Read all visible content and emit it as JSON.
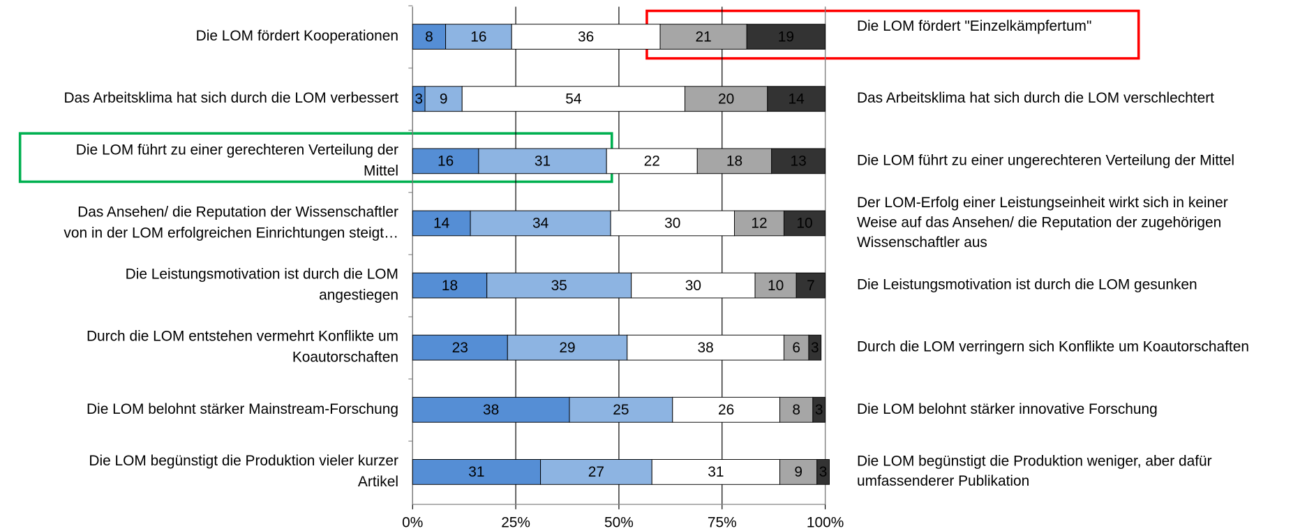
{
  "chart_data": {
    "type": "stacked-bar-horizontal",
    "categories": [
      [
        "Die LOM fördert Kooperationen"
      ],
      [
        "Das Arbeitsklima hat sich durch die LOM verbessert"
      ],
      [
        "Die LOM führt zu einer gerechteren Verteilung der",
        "Mittel"
      ],
      [
        "Das Ansehen/ die Reputation der Wissenschaftler",
        "von in der LOM erfolgreichen Einrichtungen steigt…"
      ],
      [
        "Die Leistungsmotivation ist durch die LOM",
        "angestiegen"
      ],
      [
        "Durch die LOM entstehen vermehrt Konflikte um",
        "Koautorschaften"
      ],
      [
        "Die LOM belohnt stärker Mainstream-Forschung"
      ],
      [
        "Die LOM begünstigt die Produktion vieler kurzer",
        "Artikel"
      ]
    ],
    "right_labels": [
      [
        "Die LOM fördert \"Einzelkämpfertum\""
      ],
      [
        "Das Arbeitsklima hat sich durch die LOM verschlechtert"
      ],
      [
        "Die LOM führt zu einer ungerechteren Verteilung der Mittel"
      ],
      [
        "Der LOM-Erfolg einer Leistungseinheit wirkt sich in keiner",
        "Weise auf das Ansehen/ die Reputation der zugehörigen",
        "Wissenschaftler aus"
      ],
      [
        "Die Leistungsmotivation ist durch die LOM gesunken"
      ],
      [
        "Durch die LOM verringern sich Konflikte um Koautorschaften"
      ],
      [
        "Die LOM belohnt stärker innovative Forschung"
      ],
      [
        "Die LOM begünstigt die Produktion weniger, aber dafür",
        "umfassenderer Publikation"
      ]
    ],
    "series": [
      {
        "color": "#558ed5",
        "values": [
          8,
          3,
          16,
          14,
          18,
          23,
          38,
          31
        ]
      },
      {
        "color": "#8db4e2",
        "values": [
          16,
          9,
          31,
          34,
          35,
          29,
          25,
          27
        ]
      },
      {
        "color": "#ffffff",
        "values": [
          36,
          54,
          22,
          30,
          30,
          38,
          26,
          31
        ]
      },
      {
        "color": "#a6a6a6",
        "values": [
          21,
          20,
          18,
          12,
          10,
          6,
          8,
          9
        ]
      },
      {
        "color": "#333333",
        "values": [
          19,
          14,
          13,
          10,
          7,
          3,
          3,
          3
        ]
      }
    ],
    "xlim": [
      0,
      100
    ],
    "xticks": [
      {
        "value": 0,
        "label": "0%"
      },
      {
        "value": 25,
        "label": "25%"
      },
      {
        "value": 50,
        "label": "50%"
      },
      {
        "value": 75,
        "label": "75%"
      },
      {
        "value": 100,
        "label": "100%"
      }
    ],
    "grid": true
  }
}
